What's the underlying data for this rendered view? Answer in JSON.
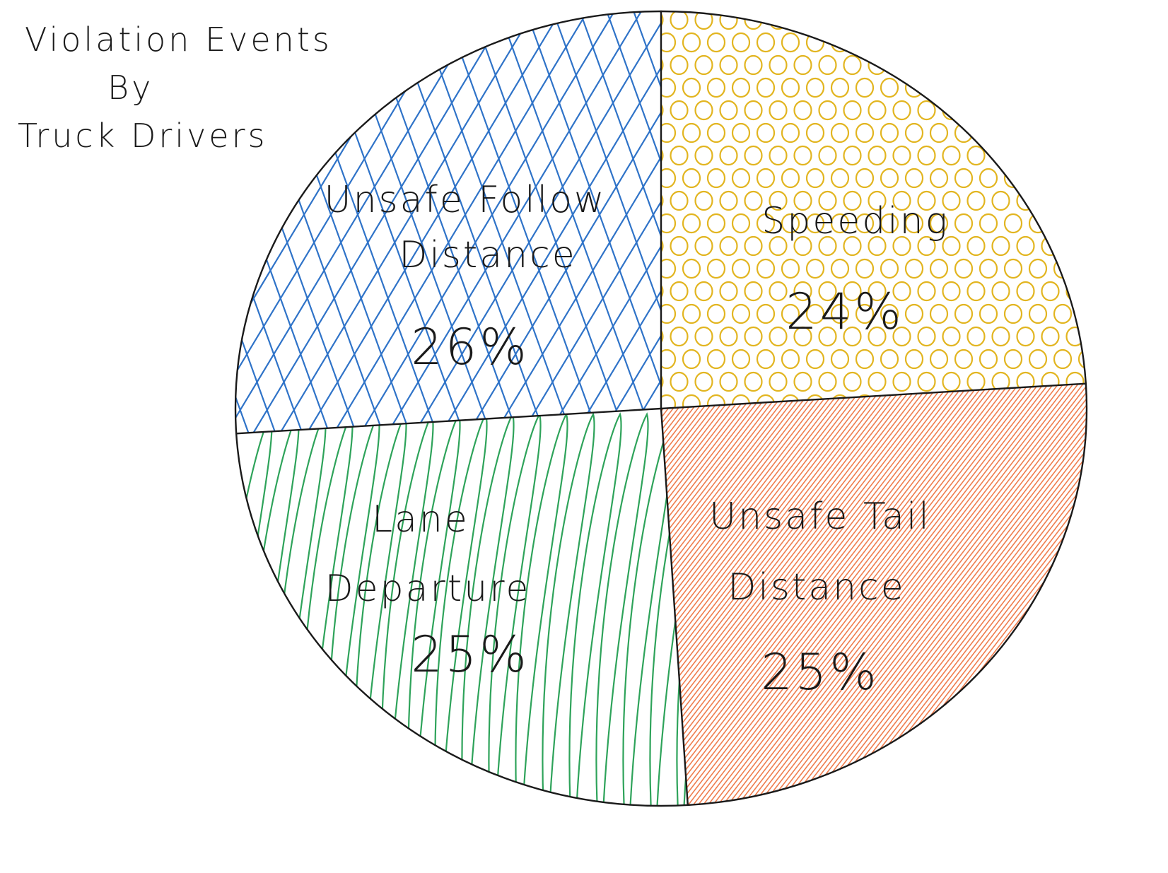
{
  "chart_data": {
    "type": "pie",
    "title_lines": [
      "Violation Events",
      "By",
      "Truck Drivers"
    ],
    "slices": [
      {
        "label_lines": [
          "Unsafe Follow",
          "Distance"
        ],
        "value": 26,
        "value_label": "26%",
        "color": "#2f73c8",
        "pattern": "crosshatch-icon"
      },
      {
        "label_lines": [
          "Speeding"
        ],
        "value": 24,
        "value_label": "24%",
        "color": "#e2b520",
        "pattern": "circles-icon"
      },
      {
        "label_lines": [
          "Unsafe Tail",
          "Distance"
        ],
        "value": 25,
        "value_label": "25%",
        "color": "#ee6f3b",
        "pattern": "dense-hatch-icon"
      },
      {
        "label_lines": [
          "Lane",
          "Departure"
        ],
        "value": 25,
        "value_label": "25%",
        "color": "#2ea35a",
        "pattern": "loop-stripes-icon"
      }
    ]
  }
}
